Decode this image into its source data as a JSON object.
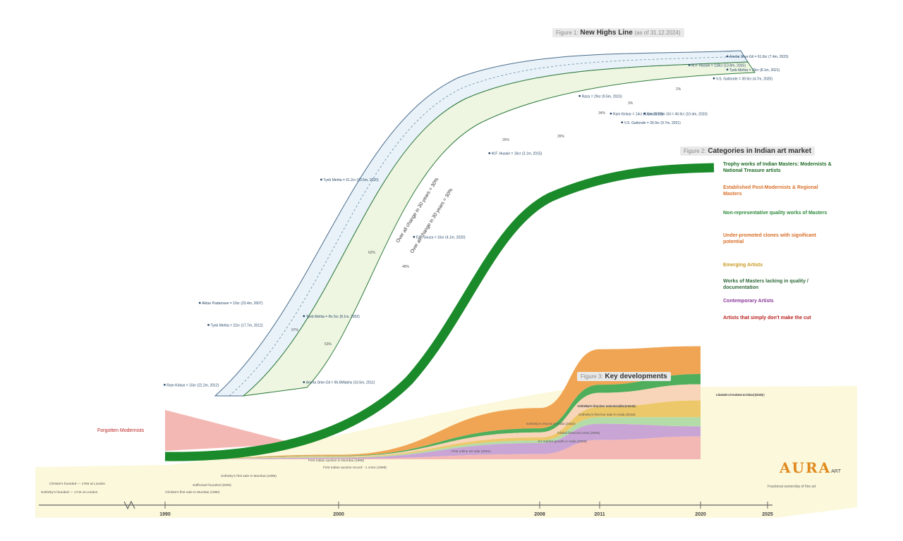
{
  "titles": {
    "figure1": {
      "tag": "Figure 1:",
      "text": "New Highs Line",
      "sub": "(as of 31.12.2024)"
    },
    "figure2": {
      "tag": "Figure 2:",
      "text": "Categories in Indian art market"
    },
    "figure3": {
      "tag": "Figure 3:",
      "text": "Key developments"
    }
  },
  "logo": {
    "text": "AURA",
    "sup": "ART",
    "tagline": "Fractional ownership of fine art"
  },
  "colors": {
    "dark_green": "#1a8a2a",
    "orange": "#f0a555",
    "mid_green": "#4fae5c",
    "peach": "#f8d5b8",
    "yellow": "#ecc86a",
    "light_green": "#b4dca8",
    "purple": "#c9a5d6",
    "pink": "#f4b8b4",
    "band_blue": "#e8f2f8",
    "band_green": "#eef6e2",
    "yellow_bg": "#fbf7d8"
  },
  "chart_data": [
    {
      "type": "area",
      "title": "Categories in Indian art market",
      "x": [
        1990,
        2000,
        2008,
        2011,
        2020
      ],
      "series": [
        {
          "name": "Trophy works of Indian Masters: Modernists & National Treasure artists",
          "color": "#1a8a2a",
          "values": [
            10,
            22,
            165,
            255,
            290
          ]
        },
        {
          "name": "Established Post-Modernists & Regional Masters",
          "color": "#f0a555",
          "values": [
            0,
            2,
            40,
            70,
            55
          ]
        },
        {
          "name": "Non-representative quality works of Masters",
          "color": "#4fae5c",
          "values": [
            0,
            1,
            8,
            16,
            20
          ]
        },
        {
          "name": "Under-promoted clones with significant potential",
          "color": "#f8d5b8",
          "values": [
            0,
            1,
            10,
            28,
            32
          ]
        },
        {
          "name": "Emerging Artists",
          "color": "#ecc86a",
          "values": [
            0,
            1,
            6,
            20,
            33
          ]
        },
        {
          "name": "Works of Masters lacking in quality / documentation",
          "color": "#b4dca8",
          "values": [
            0,
            1,
            5,
            13,
            18
          ]
        },
        {
          "name": "Contemporary Artists",
          "color": "#c9a5d6",
          "values": [
            0,
            2,
            22,
            32,
            20
          ]
        },
        {
          "name": "Artists that simply don't make the cut",
          "color": "#f4b8b4",
          "values": [
            0,
            1,
            10,
            38,
            45
          ]
        }
      ],
      "annotation": "Forgotten Modernists",
      "xlabel": "",
      "ylabel": ""
    },
    {
      "type": "line",
      "title": "New Highs Line",
      "series": [
        {
          "name": "Upper band",
          "points": [
            [
              1990,
              40
            ],
            [
              1995,
              110
            ],
            [
              2000,
              200
            ],
            [
              2005,
              290
            ],
            [
              2010,
              350
            ],
            [
              2015,
              380
            ],
            [
              2020,
              400
            ],
            [
              2025,
              415
            ]
          ]
        },
        {
          "name": "Middle trend",
          "points": [
            [
              1991,
              25
            ],
            [
              1996,
              95
            ],
            [
              2001,
              185
            ],
            [
              2006,
              275
            ],
            [
              2011,
              335
            ],
            [
              2016,
              365
            ],
            [
              2021,
              385
            ],
            [
              2025,
              400
            ]
          ]
        },
        {
          "name": "Lower band",
          "points": [
            [
              1992,
              10
            ],
            [
              1997,
              80
            ],
            [
              2002,
              170
            ],
            [
              2007,
              255
            ],
            [
              2012,
              320
            ],
            [
              2017,
              350
            ],
            [
              2022,
              370
            ],
            [
              2025,
              385
            ]
          ]
        }
      ],
      "band_labels": [
        "Over all change in 30 years = 30%",
        "Over all change in 30 years = 30%"
      ],
      "point_labels": [
        {
          "text": "Ram Kinkar = 10cr (22.2m, 2012)",
          "x": 1989.5,
          "y": 27
        },
        {
          "text": "Akbar Padamsee = 10cr (23.4m, 2007)",
          "x": 1992,
          "y": 120
        },
        {
          "text": "Tyeb Mehta = 22cr (17.7m, 2012)",
          "x": 1992.5,
          "y": 95
        },
        {
          "text": "Amrita Sher-Gil = 96.6Mlakhs (16.5m, 2011)",
          "x": 1998,
          "y": 30
        },
        {
          "text": "Tyeb Mehta = Rs 5cr (8.1m, 2002)",
          "x": 1998,
          "y": 105
        },
        {
          "text": "F.N. Souza = 16cr (4.1m, 2020)",
          "x": 2003,
          "y": 195
        },
        {
          "text": "Tyeb Mehta = 61.2cr (30.5m, 2020)",
          "x": 1999,
          "y": 260
        },
        {
          "text": "M.F. Husain = 16cr (3.1m, 2015)",
          "x": 2006,
          "y": 290
        },
        {
          "text": "Raza = 29cr (9.5m, 2023)",
          "x": 2010,
          "y": 355
        },
        {
          "text": "V.S. Gaitonde = 39.9cr (9.7m, 2021)",
          "x": 2013,
          "y": 325
        },
        {
          "text": "Ram Kinkar = 14cr (6.1m, 2023)",
          "x": 2012,
          "y": 335
        },
        {
          "text": "Amrita Sher-Gil = 46.9cr (10.4m, 2023)",
          "x": 2015,
          "y": 335
        },
        {
          "text": "M.F. Husain = 118cr (13.8m, 2025)",
          "x": 2019,
          "y": 390
        },
        {
          "text": "Amrita Sher-Gil = 61.8cr (7.4m, 2023)",
          "x": 2022,
          "y": 400
        },
        {
          "text": "Tyeb Mehta = 33cr (8.1m, 2021)",
          "x": 2022,
          "y": 385
        },
        {
          "text": "V.S. Gaitonde = 39.9cr (4.7m, 2020)",
          "x": 2021,
          "y": 375
        }
      ],
      "percent_labels": [
        "97%",
        "53%",
        "62%",
        "48%",
        "26%",
        "39%",
        "34%",
        "3%",
        "2%"
      ]
    },
    {
      "type": "area",
      "title": "Key developments",
      "events": [
        {
          "text": "Christie's founded — 1766 at London",
          "x": 1870
        },
        {
          "text": "Sotheby's founded — 1744 at London",
          "x": 1869
        },
        {
          "text": "Sotheby's first sale in Mumbai (1995)",
          "x": 1995
        },
        {
          "text": "Christie's first sale in Mumbai (1990)",
          "x": 1996
        },
        {
          "text": "Saffronart founded (2000)",
          "x": 1997
        },
        {
          "text": "First Indian auction in Mumbai (1998)",
          "x": 1995
        },
        {
          "text": "First Indian auction record - 1 crore (1998)",
          "x": 2001
        },
        {
          "text": "First online art sale (2001)",
          "x": 2001
        },
        {
          "text": "Art market growth in India (2005)",
          "x": 2005
        },
        {
          "text": "Global financial crisis (2008)",
          "x": 2008
        },
        {
          "text": "Christie's first live sale in India (2013)",
          "x": 2011
        },
        {
          "text": "Sotheby's first live sale in India (2016)",
          "x": 2013
        },
        {
          "text": "Sotheby's returns to India (2022)",
          "x": 2014
        },
        {
          "text": "Christie's re-enters India (2020)",
          "x": 2016
        },
        {
          "text": "Sotheby's reopens in India (2016-2019)",
          "x": 2016
        },
        {
          "text": "Launch of India's art fund (2022)",
          "x": 2020
        }
      ]
    }
  ],
  "axis": {
    "ticks": [
      {
        "label": "1990",
        "x": 1990
      },
      {
        "label": "2000",
        "x": 2000
      },
      {
        "label": "2008",
        "x": 2008
      },
      {
        "label": "2011",
        "x": 2011
      },
      {
        "label": "2020",
        "x": 2020
      },
      {
        "label": "2025",
        "x": 2025
      }
    ]
  }
}
